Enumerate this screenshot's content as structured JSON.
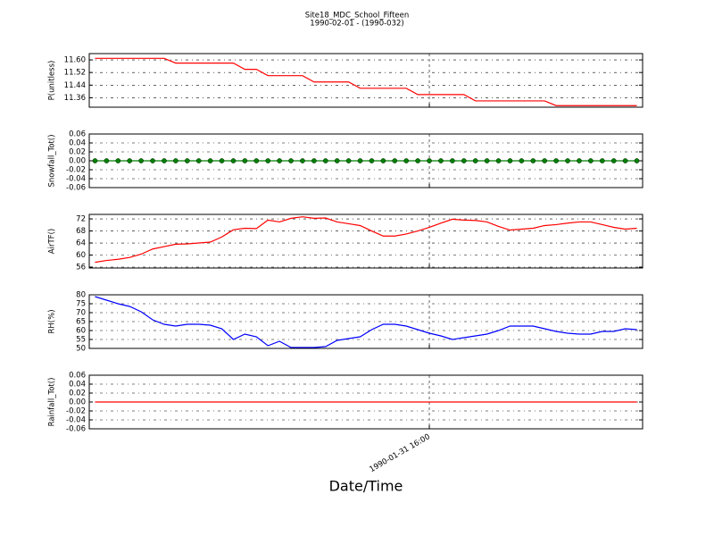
{
  "title": "Site18_MDC_School_Fifteen",
  "subtitle": "1990-02-01 - (1990-032)",
  "xlabel": "Date/Time",
  "categories": [
    null,
    null,
    null,
    null,
    null,
    null,
    null,
    null,
    null,
    null,
    null,
    null,
    null,
    null,
    null,
    null,
    null,
    null,
    null,
    null,
    null,
    null,
    null,
    null,
    null,
    null,
    null,
    null,
    null,
    "1990-01-31 16:00",
    null,
    null,
    null,
    null,
    null,
    null,
    null,
    null,
    null,
    null,
    null,
    null,
    null,
    null,
    null,
    null,
    null,
    null
  ],
  "chart_data": [
    {
      "type": "line",
      "ylabel": "P(unitless)",
      "color": "#ff0000",
      "grid": true,
      "ylim": [
        11.3,
        11.64
      ],
      "yticks": [
        {
          "value": 11.36,
          "label": "11.36"
        },
        {
          "value": 11.44,
          "label": "11.44"
        },
        {
          "value": 11.52,
          "label": "11.52"
        },
        {
          "value": 11.6,
          "label": "11.60"
        }
      ],
      "values": [
        11.61,
        11.61,
        11.61,
        11.61,
        11.61,
        11.61,
        11.61,
        11.58,
        11.58,
        11.58,
        11.58,
        11.58,
        11.58,
        11.54,
        11.54,
        11.5,
        11.5,
        11.5,
        11.5,
        11.46,
        11.46,
        11.46,
        11.46,
        11.42,
        11.42,
        11.42,
        11.42,
        11.42,
        11.38,
        11.38,
        11.38,
        11.38,
        11.38,
        11.34,
        11.34,
        11.34,
        11.34,
        11.34,
        11.34,
        11.34,
        11.31,
        11.31,
        11.31,
        11.31,
        11.31,
        11.31,
        11.31,
        11.31
      ]
    },
    {
      "type": "line",
      "ylabel": "Snowfall_Tot()",
      "color": "#008000",
      "markers": true,
      "grid": true,
      "ylim": [
        -0.06,
        0.06
      ],
      "yticks": [
        -0.06,
        -0.04,
        -0.02,
        {
          "value": 0,
          "label": "0.00"
        },
        0.02,
        0.04,
        0.06
      ],
      "values": [
        0,
        0,
        0,
        0,
        0,
        0,
        0,
        0,
        0,
        0,
        0,
        0,
        0,
        0,
        0,
        0,
        0,
        0,
        0,
        0,
        0,
        0,
        0,
        0,
        0,
        0,
        0,
        0,
        0,
        0,
        0,
        0,
        0,
        0,
        0,
        0,
        0,
        0,
        0,
        0,
        0,
        0,
        0,
        0,
        0,
        0,
        0,
        0
      ]
    },
    {
      "type": "line",
      "ylabel": "AirTF()",
      "color": "#ff0000",
      "grid": true,
      "ylim": [
        55.7,
        73.5
      ],
      "yticks": [
        56,
        60,
        64,
        68,
        72
      ],
      "values": [
        57.6,
        58.2,
        58.6,
        59.2,
        60.3,
        62.0,
        62.8,
        63.6,
        63.7,
        64.0,
        64.3,
        66.0,
        68.4,
        68.9,
        68.8,
        71.6,
        71.0,
        72.2,
        72.7,
        72.2,
        72.3,
        71.0,
        70.4,
        69.8,
        68.0,
        66.3,
        66.3,
        67.0,
        68.0,
        69.2,
        70.6,
        71.9,
        71.6,
        71.5,
        71.0,
        69.5,
        68.3,
        68.6,
        68.9,
        69.8,
        70.1,
        70.6,
        71.0,
        71.0,
        70.1,
        69.2,
        68.6,
        68.9
      ]
    },
    {
      "type": "line",
      "ylabel": "RH(%)",
      "color": "#0000ff",
      "grid": true,
      "ylim": [
        50,
        80
      ],
      "yticks": [
        50,
        55,
        60,
        65,
        70,
        75,
        80
      ],
      "values": [
        79.0,
        77.0,
        75.0,
        73.5,
        70.5,
        66.0,
        63.5,
        62.5,
        63.5,
        63.5,
        63.0,
        61.0,
        55.0,
        58.0,
        56.5,
        51.5,
        54.0,
        50.5,
        50.5,
        50.5,
        51.0,
        54.5,
        55.5,
        56.5,
        60.5,
        63.5,
        63.5,
        62.5,
        60.5,
        58.5,
        57.0,
        55.0,
        56.0,
        57.0,
        58.0,
        60.0,
        62.5,
        62.5,
        62.5,
        61.0,
        59.5,
        58.5,
        58.0,
        58.0,
        59.5,
        59.5,
        61.0,
        60.5
      ]
    },
    {
      "type": "line",
      "ylabel": "Rainfall_Tot()",
      "color": "#ff0000",
      "grid": true,
      "ylim": [
        -0.06,
        0.06
      ],
      "yticks": [
        -0.06,
        -0.04,
        -0.02,
        {
          "value": 0,
          "label": "0.00"
        },
        0.02,
        0.04,
        0.06
      ],
      "values": [
        0,
        0,
        0,
        0,
        0,
        0,
        0,
        0,
        0,
        0,
        0,
        0,
        0,
        0,
        0,
        0,
        0,
        0,
        0,
        0,
        0,
        0,
        0,
        0,
        0,
        0,
        0,
        0,
        0,
        0,
        0,
        0,
        0,
        0,
        0,
        0,
        0,
        0,
        0,
        0,
        0,
        0,
        0,
        0,
        0,
        0,
        0,
        0
      ]
    }
  ]
}
